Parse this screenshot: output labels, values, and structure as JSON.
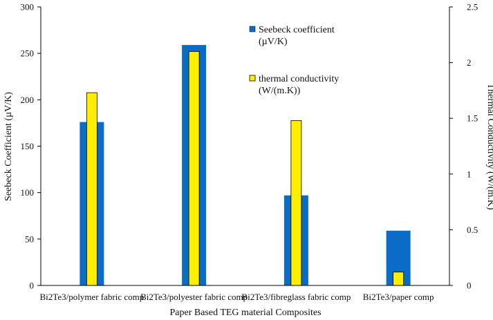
{
  "chart_data": {
    "type": "bar",
    "title": "",
    "xlabel": "Paper Based TEG material Composites",
    "categories": [
      "Bi2Te3/polymer fabric comp",
      "Bi2Te3/polyester fabric comp",
      "Bi2Te3/fibreglass fabric comp",
      "Bi2Te3/paper comp"
    ],
    "left_axis": {
      "label": "Seebeck Coefficient (µV/K)",
      "ylim": [
        0,
        300
      ],
      "ticks": [
        0,
        50,
        100,
        150,
        200,
        250,
        300
      ]
    },
    "right_axis": {
      "label": "Thermal Conductivity (W/(m.K)",
      "ylim": [
        0,
        2.5
      ],
      "ticks": [
        "0",
        "0.5",
        "1",
        "1.5",
        "2",
        "2.5"
      ]
    },
    "series": [
      {
        "name": "Seebeck coefficient",
        "name_line2": "(µV/K)",
        "axis": "left",
        "color": "#0a6cc7",
        "values": [
          176,
          259,
          97,
          59
        ]
      },
      {
        "name": "thermal conductivity",
        "name_line2": "(W/(m.K))",
        "axis": "right",
        "color": "#ffee00",
        "values": [
          1.73,
          2.1,
          1.48,
          0.12
        ]
      }
    ],
    "legend": "top-center"
  }
}
